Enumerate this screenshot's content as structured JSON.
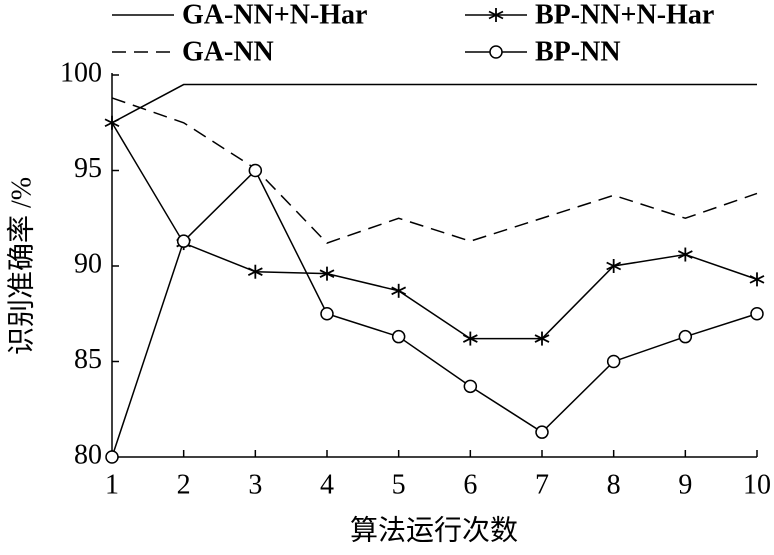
{
  "chart_data": {
    "type": "line",
    "x_label": "算法运行次数",
    "y_label": "识别准确率 /%",
    "x": [
      1,
      2,
      3,
      4,
      5,
      6,
      7,
      8,
      9,
      10
    ],
    "series": [
      {
        "name": "GA-NN+N-Har",
        "color": "#000000",
        "dash": "solid",
        "marker": "none",
        "values": [
          97.5,
          99.5,
          99.5,
          99.5,
          99.5,
          99.5,
          99.5,
          99.5,
          99.5,
          99.5
        ]
      },
      {
        "name": "BP-NN+N-Har",
        "color": "#000000",
        "dash": "solid",
        "marker": "star",
        "values": [
          97.5,
          91.2,
          89.7,
          89.6,
          88.7,
          86.2,
          86.2,
          90.0,
          90.6,
          89.3
        ]
      },
      {
        "name": "GA-NN",
        "color": "#000000",
        "dash": "dashed",
        "marker": "none",
        "values": [
          98.8,
          97.5,
          95.1,
          91.2,
          92.5,
          91.3,
          92.5,
          93.7,
          92.5,
          93.8
        ]
      },
      {
        "name": "BP-NN",
        "color": "#000000",
        "dash": "solid",
        "marker": "circle",
        "values": [
          80.0,
          91.3,
          95.0,
          87.5,
          86.3,
          83.7,
          81.3,
          85.0,
          86.3,
          87.5
        ]
      }
    ],
    "xlim": [
      1,
      10
    ],
    "xticks": [
      1,
      2,
      3,
      4,
      5,
      6,
      7,
      8,
      9,
      10
    ],
    "ylim": [
      80,
      100
    ],
    "yticks": [
      80,
      85,
      90,
      95,
      100
    ]
  }
}
